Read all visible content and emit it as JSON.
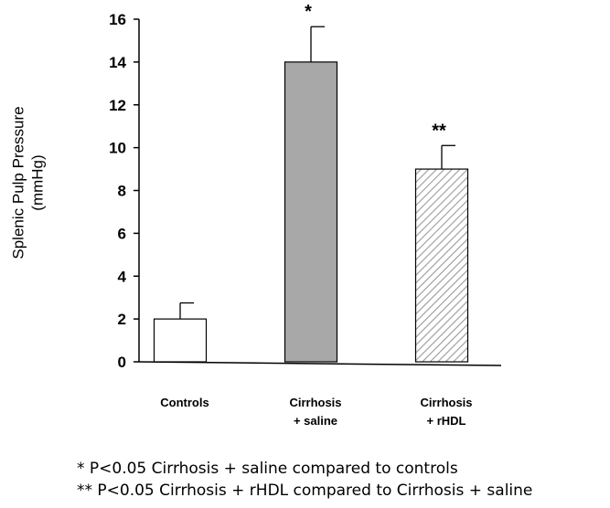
{
  "chart_data": {
    "type": "bar",
    "ylabel": [
      "Splenic Pulp Pressure",
      "(mmHg)"
    ],
    "ylim": [
      0,
      16
    ],
    "yticks": [
      0,
      2,
      4,
      6,
      8,
      10,
      12,
      14,
      16
    ],
    "categories": [
      {
        "lines": [
          "Controls"
        ],
        "value": 2.0,
        "error": 0.75,
        "significance": "",
        "fill": "white"
      },
      {
        "lines": [
          "Cirrhosis",
          "+ saline"
        ],
        "value": 14.0,
        "error": 1.65,
        "significance": "*",
        "fill": "gray"
      },
      {
        "lines": [
          "Cirrhosis",
          "+ rHDL"
        ],
        "value": 9.0,
        "error": 1.1,
        "significance": "**",
        "fill": "hatched"
      }
    ],
    "colors": {
      "gray": "#a8a8a8",
      "white": "#ffffff",
      "hatch": "#9a9a9a",
      "axis": "#000000"
    }
  },
  "footnotes": [
    "* P<0.05 Cirrhosis + saline compared to controls",
    "** P<0.05 Cirrhosis + rHDL compared to Cirrhosis + saline"
  ]
}
